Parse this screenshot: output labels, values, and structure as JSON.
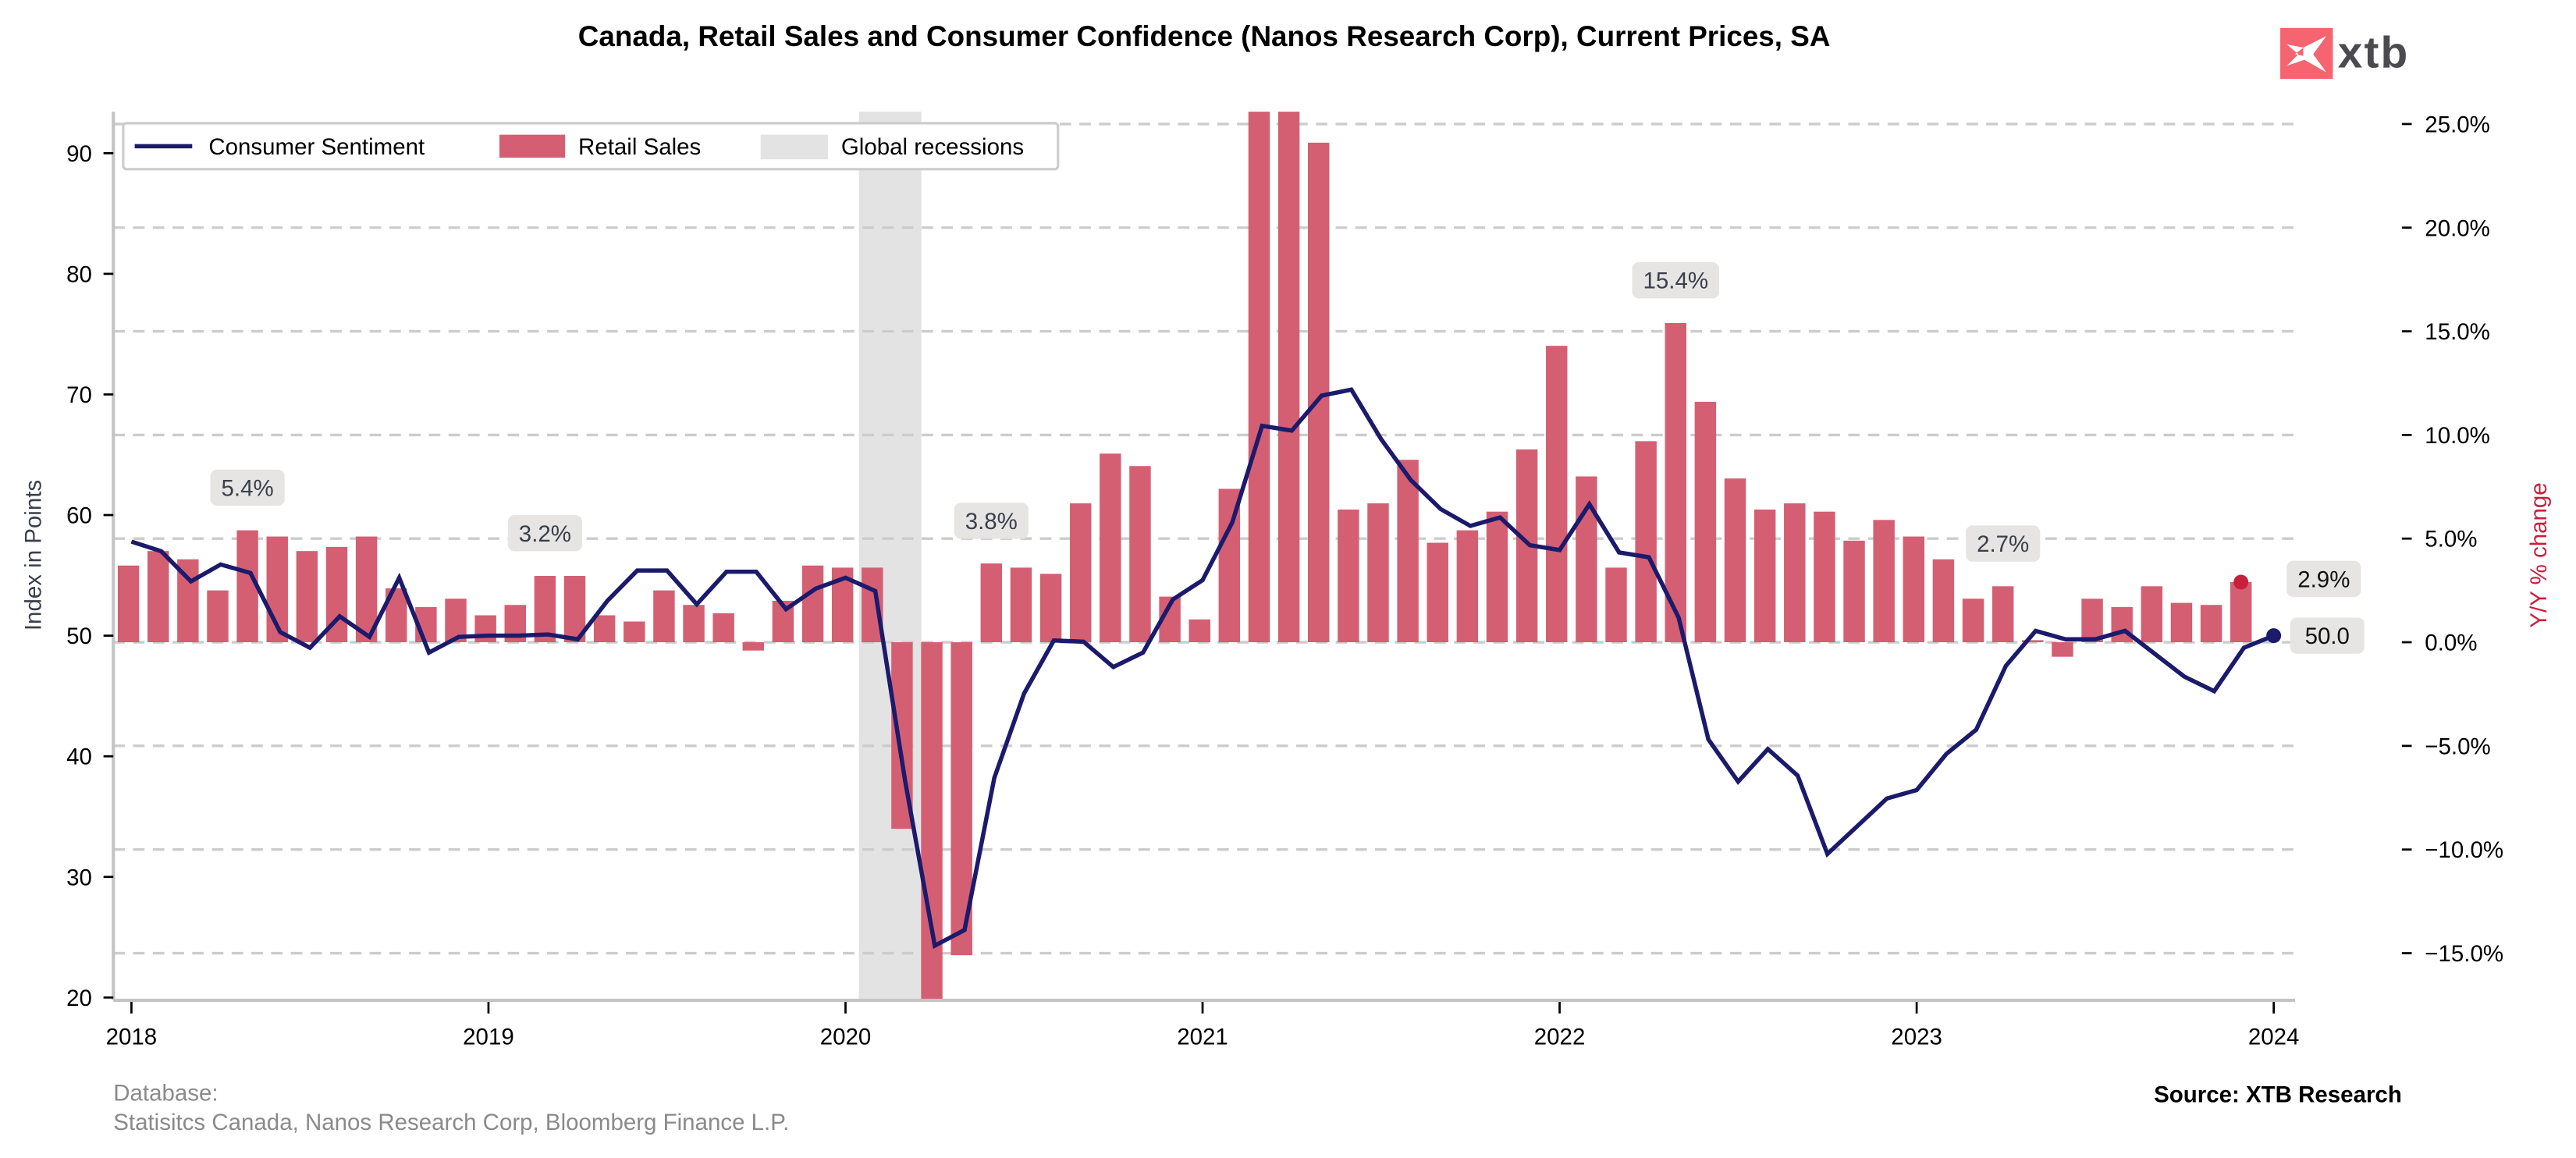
{
  "header": {
    "title": "Canada, Retail Sales and Consumer Confidence (Nanos Research Corp), Current Prices, SA",
    "logo_text": "xtb",
    "logo_color": "#f5646f"
  },
  "footer": {
    "database_label": "Database:",
    "database_sources": "Statisitcs Canada, Nanos Research Corp, Bloomberg Finance L.P.",
    "source": "Source: XTB Research"
  },
  "legend": {
    "items": [
      {
        "label": "Consumer Sentiment",
        "type": "line",
        "color": "#1b1a6b"
      },
      {
        "label": "Retail Sales",
        "type": "bar",
        "color": "#d45f73"
      },
      {
        "label": "Global recessions",
        "type": "area",
        "color": "#e3e3e3"
      }
    ]
  },
  "chart_data": {
    "type": "bar+line",
    "title": "Canada, Retail Sales and Consumer Confidence (Nanos Research Corp), Current Prices, SA",
    "xlabel": "",
    "ylabel_left": "Index in Points",
    "ylabel_right": "Y/Y % change",
    "x_start": "2018-01",
    "x_ticks": [
      "2018",
      "2019",
      "2020",
      "2021",
      "2022",
      "2023",
      "2024"
    ],
    "ylim_left": [
      19.8,
      93.5
    ],
    "yticks_left": [
      20,
      30,
      40,
      50,
      60,
      70,
      80,
      90
    ],
    "ylim_right": [
      -17.2,
      25.7
    ],
    "yticks_right": [
      "−15.0%",
      "−10.0%",
      "−5.0%",
      "0.0%",
      "5.0%",
      "10.0%",
      "15.0%",
      "20.0%",
      "25.0%"
    ],
    "yticks_right_values": [
      -15,
      -10,
      -5,
      0,
      5,
      10,
      15,
      20,
      25
    ],
    "grid": "horizontal dashed (right axis)",
    "legend_position": "top-left",
    "recessions": [
      {
        "start": "2020-02",
        "end": "2020-04"
      }
    ],
    "series": [
      {
        "name": "Retail Sales",
        "axis": "right",
        "kind": "bar",
        "unit": "% Y/Y",
        "start": "2018-01",
        "values": [
          3.7,
          4.4,
          4.0,
          2.5,
          5.4,
          5.1,
          4.4,
          4.6,
          5.1,
          2.6,
          1.7,
          2.1,
          1.3,
          1.8,
          3.2,
          3.2,
          1.3,
          1.0,
          2.5,
          1.8,
          1.4,
          -0.4,
          2.0,
          3.7,
          3.6,
          3.6,
          -9.0,
          -17.5,
          -15.1,
          3.8,
          3.6,
          3.3,
          6.7,
          9.1,
          8.5,
          2.2,
          1.1,
          7.4,
          30.0,
          29.0,
          24.1,
          6.4,
          6.7,
          8.8,
          4.8,
          5.4,
          6.3,
          9.3,
          14.3,
          8.0,
          3.6,
          9.7,
          15.4,
          11.6,
          7.9,
          6.4,
          6.7,
          6.3,
          4.9,
          5.9,
          5.1,
          4.0,
          2.1,
          2.7,
          0.1,
          -0.7,
          2.1,
          1.7,
          2.7,
          1.9,
          1.8,
          2.9
        ]
      },
      {
        "name": "Consumer Sentiment",
        "axis": "left",
        "kind": "line",
        "unit": "index points",
        "start": "2018-01",
        "values": [
          57.8,
          57.0,
          54.5,
          55.9,
          55.2,
          50.3,
          49.0,
          51.6,
          49.9,
          54.8,
          48.6,
          49.9,
          50.0,
          50.0,
          50.1,
          49.7,
          52.9,
          55.4,
          55.4,
          52.6,
          55.3,
          55.3,
          52.2,
          53.9,
          54.8,
          53.7,
          38.0,
          24.3,
          25.6,
          38.2,
          45.2,
          49.6,
          49.5,
          47.4,
          48.6,
          53.0,
          54.6,
          59.4,
          67.4,
          67.0,
          69.9,
          70.4,
          66.3,
          62.9,
          60.5,
          59.1,
          59.8,
          57.5,
          57.1,
          60.9,
          56.9,
          56.5,
          51.5,
          41.4,
          37.9,
          40.6,
          38.4,
          31.9,
          34.2,
          36.5,
          37.2,
          40.2,
          42.2,
          47.5,
          50.4,
          49.7,
          49.7,
          50.4,
          48.5,
          46.6,
          45.4,
          49.0,
          50.0
        ]
      }
    ],
    "annotations": [
      {
        "label": "5.4%",
        "date": "2018-05",
        "series": "Retail Sales"
      },
      {
        "label": "3.2%",
        "date": "2019-03",
        "series": "Retail Sales"
      },
      {
        "label": "3.8%",
        "date": "2020-06",
        "series": "Retail Sales"
      },
      {
        "label": "15.4%",
        "date": "2022-05",
        "series": "Retail Sales"
      },
      {
        "label": "2.7%",
        "date": "2023-04",
        "series": "Retail Sales"
      },
      {
        "label": "2.9%",
        "date": "2023-12",
        "series": "Retail Sales",
        "last": true
      },
      {
        "label": "50.0",
        "date": "2024-01",
        "series": "Consumer Sentiment",
        "last": true
      }
    ]
  }
}
